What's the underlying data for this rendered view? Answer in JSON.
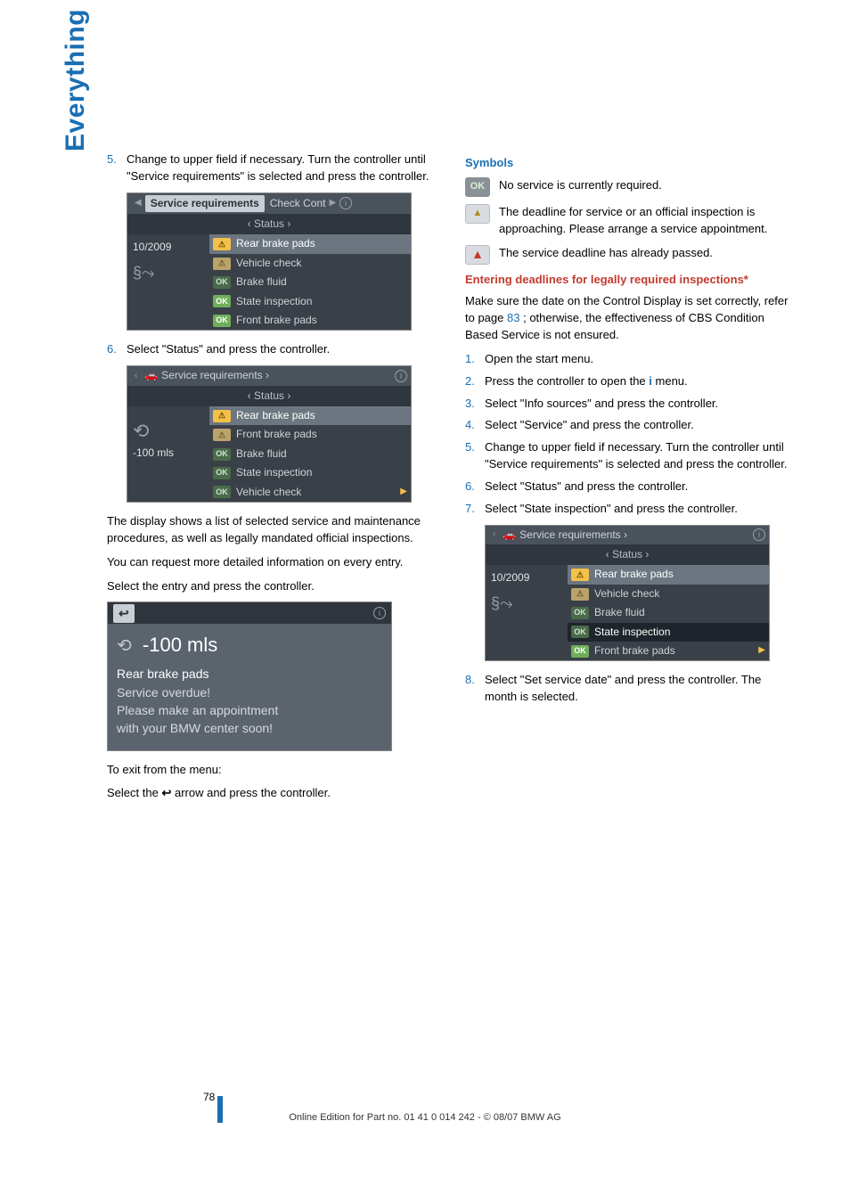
{
  "vtab": "Everything under control",
  "left": {
    "step5_num": "5.",
    "step5": "Change to upper field if necessary. Turn the controller until \"Service requirements\" is selected and press the controller.",
    "step6_num": "6.",
    "step6": "Select \"Status\" and press the controller.",
    "after_shots_p1": "The display shows a list of selected service and maintenance procedures, as well as legally mandated official inspections.",
    "after_shots_p2": "You can request more detailed information on every entry.",
    "after_shots_p3": "Select the entry and press the controller.",
    "exit_p1": "To exit from the menu:",
    "exit_p2_a": "Select the ",
    "exit_p2_glyph": "↩",
    "exit_p2_b": " arrow and press the controller.",
    "shot1": {
      "tri_l": "◀",
      "chip": "Service requirements",
      "bar_rest": "Check Cont",
      "tri_r": "▶",
      "circ": "i",
      "status": "‹ Status ›",
      "left_date": "10/2009",
      "gauge": "§⤳",
      "rows": [
        {
          "tag": "⚠",
          "cls": "warn",
          "label": "Rear brake pads",
          "hl": true
        },
        {
          "tag": "⚠",
          "cls": "warnlt",
          "label": "Vehicle check"
        },
        {
          "tag": "OK",
          "cls": "okd",
          "label": "Brake fluid"
        },
        {
          "tag": "OK",
          "cls": "ok",
          "label": "State inspection"
        },
        {
          "tag": "OK",
          "cls": "ok",
          "label": "Front brake pads"
        }
      ]
    },
    "shot2": {
      "bar": "Service requirements ›",
      "status": "‹ Status ›",
      "left_val": "-100 mls",
      "gauge": "⟲",
      "rows": [
        {
          "tag": "⚠",
          "cls": "warn",
          "label": "Rear brake pads",
          "hl": true
        },
        {
          "tag": "⚠",
          "cls": "warnlt",
          "label": "Front brake pads"
        },
        {
          "tag": "OK",
          "cls": "okd",
          "label": "Brake fluid"
        },
        {
          "tag": "OK",
          "cls": "okd",
          "label": "State inspection"
        },
        {
          "tag": "OK",
          "cls": "okd",
          "label": "Vehicle check",
          "rarrow": true
        }
      ]
    },
    "detail": {
      "back": "↩",
      "value": "-100 mls",
      "l1": "Rear brake pads",
      "l2": "Service overdue!",
      "l3": "Please make an appointment",
      "l4": "with your BMW center soon!"
    }
  },
  "right": {
    "h_symbols": "Symbols",
    "sym1": "No service is currently required.",
    "sym2": "The deadline for service or an official inspection is approaching. Please arrange a service appointment.",
    "sym3": "The service deadline has already passed.",
    "h_deadlines": "Entering deadlines for legally required inspections*",
    "deadlines_intro_a": "Make sure the date on the Control Display is set correctly, refer to page ",
    "deadlines_page": "83",
    "deadlines_intro_b": "; otherwise, the effectiveness of CBS Condition Based Service is not ensured.",
    "steps": [
      {
        "n": "1.",
        "t": "Open the start menu."
      },
      {
        "n": "2.",
        "t_a": "Press the controller to open the ",
        "glyph": "i",
        "t_b": " menu."
      },
      {
        "n": "3.",
        "t": "Select \"Info sources\" and press the controller."
      },
      {
        "n": "4.",
        "t": "Select \"Service\" and press the controller."
      },
      {
        "n": "5.",
        "t": "Change to upper field if necessary. Turn the controller until \"Service requirements\" is selected and press the controller."
      },
      {
        "n": "6.",
        "t": "Select \"Status\" and press the controller."
      },
      {
        "n": "7.",
        "t": "Select \"State inspection\" and press the controller."
      }
    ],
    "shot": {
      "bar": "Service requirements ›",
      "status": "‹ Status ›",
      "left_date": "10/2009",
      "gauge": "§⤳",
      "rows": [
        {
          "tag": "⚠",
          "cls": "warn",
          "label": "Rear brake pads",
          "hl": true
        },
        {
          "tag": "⚠",
          "cls": "warnlt",
          "label": "Vehicle check"
        },
        {
          "tag": "OK",
          "cls": "okd",
          "label": "Brake fluid"
        },
        {
          "tag": "OK",
          "cls": "okd",
          "label": "State inspection",
          "state": true
        },
        {
          "tag": "OK",
          "cls": "ok",
          "label": "Front brake pads",
          "rarrow": true
        }
      ]
    },
    "step8_num": "8.",
    "step8": "Select \"Set service date\" and press the controller. The month is selected."
  },
  "footer": {
    "pagenum": "78",
    "line": "Online Edition for Part no. 01 41 0 014 242 - © 08/07 BMW AG"
  }
}
